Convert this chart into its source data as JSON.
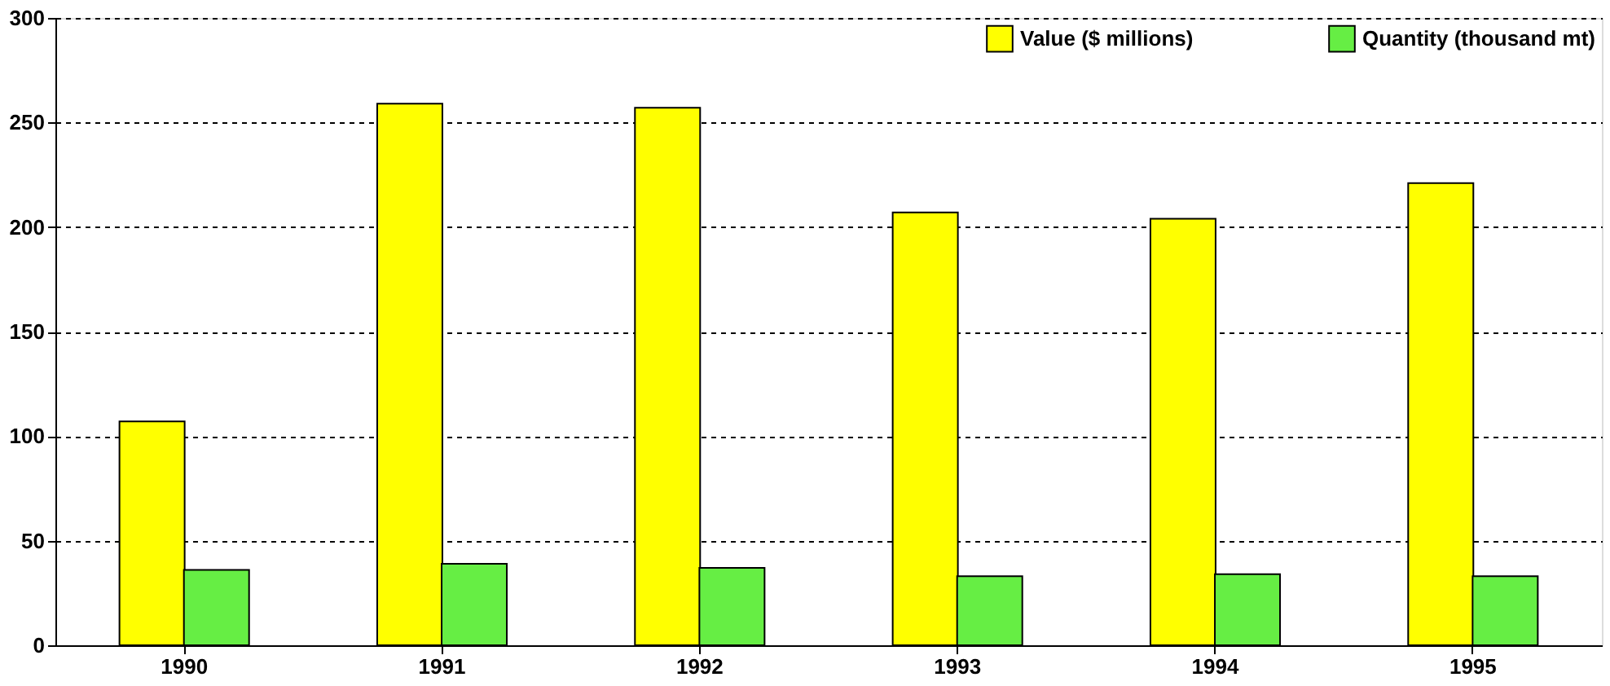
{
  "chart_data": {
    "type": "bar",
    "categories": [
      "1990",
      "1991",
      "1992",
      "1993",
      "1994",
      "1995"
    ],
    "series": [
      {
        "name": "Value ($ millions)",
        "color": "#ffff00",
        "values": [
          107,
          259,
          257,
          207,
          204,
          221
        ]
      },
      {
        "name": "Quantity (thousand mt)",
        "color": "#66ee44",
        "values": [
          36,
          39,
          37,
          33,
          34,
          33
        ]
      }
    ],
    "ylim": [
      0,
      300
    ],
    "yticks": [
      0,
      50,
      100,
      150,
      200,
      250,
      300
    ],
    "grid": "y",
    "legend": "top right"
  }
}
